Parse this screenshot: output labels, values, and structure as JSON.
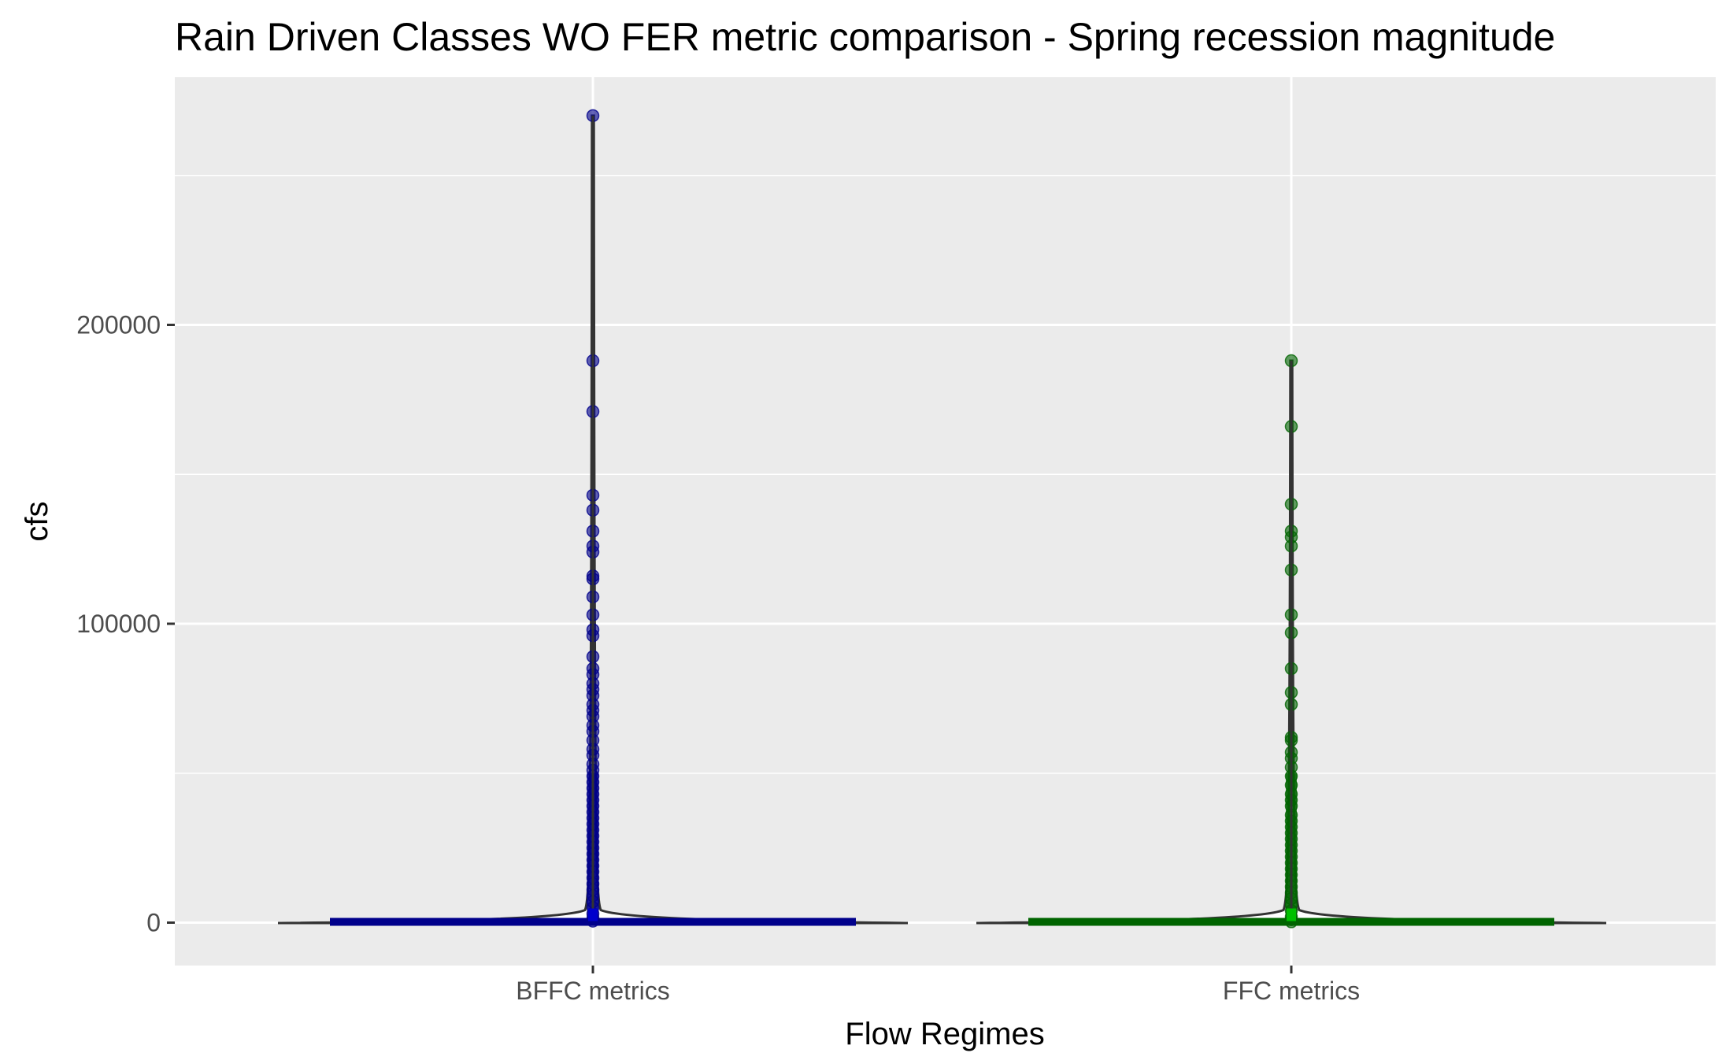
{
  "chart_data": {
    "type": "violin",
    "title": "Rain Driven Classes WO FER metric comparison  - Spring recession magnitude",
    "xlabel": "Flow Regimes",
    "ylabel": "cfs",
    "categories": [
      "BFFC metrics",
      "FFC metrics"
    ],
    "ylim": [
      -13500,
      283500
    ],
    "yticks": [
      0,
      100000,
      200000
    ],
    "ytick_labels": [
      "0",
      "100000",
      "200000"
    ],
    "grid": true,
    "legend": "none",
    "series": [
      {
        "category": "BFFC metrics",
        "color": "#00008B",
        "max": 270000,
        "box_upper": 800,
        "points": [
          270000,
          188000,
          171000,
          143000,
          138000,
          131000,
          126000,
          124000,
          116000,
          115000,
          109000,
          103000,
          98000,
          96000,
          89000,
          85000,
          83000,
          80000,
          78000,
          76000,
          73000,
          71000,
          69000,
          66000,
          64000,
          61000,
          58000,
          56000,
          53000,
          51000,
          49000,
          47000,
          45000,
          43000,
          41000,
          39000,
          37000,
          35000,
          33000,
          31000,
          29000,
          27000,
          25000,
          23000,
          21000,
          19000,
          17000,
          15000,
          13000,
          11000,
          9000,
          7000,
          5000,
          3000,
          1500,
          500
        ]
      },
      {
        "category": "FFC metrics",
        "color": "#006400",
        "max": 188000,
        "box_upper": 800,
        "points": [
          188000,
          166000,
          140000,
          131000,
          129000,
          126000,
          118000,
          103000,
          97000,
          85000,
          77000,
          73000,
          62000,
          61000,
          57000,
          55000,
          52000,
          49000,
          46000,
          43000,
          41000,
          39000,
          36000,
          34000,
          32000,
          30000,
          28000,
          26000,
          24000,
          22000,
          20000,
          18000,
          16000,
          14000,
          12000,
          10000,
          8000,
          6000,
          4000,
          2000,
          1000,
          300
        ]
      }
    ]
  }
}
